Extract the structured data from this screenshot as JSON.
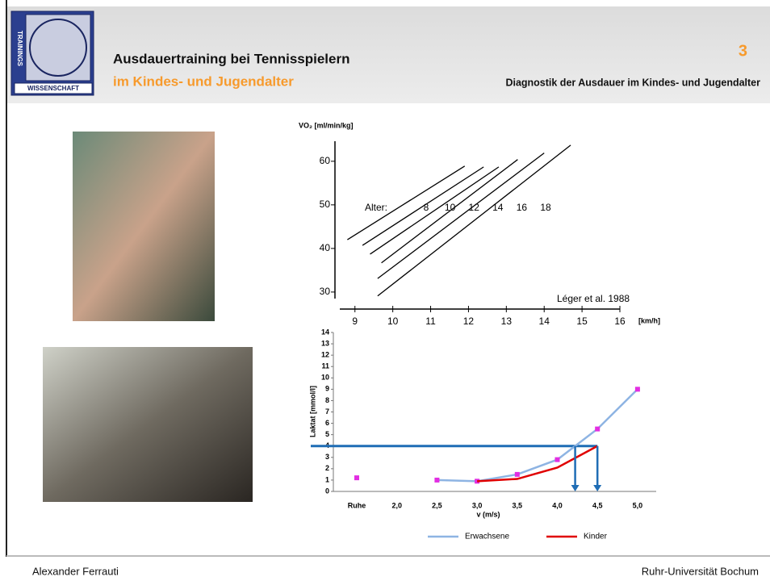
{
  "header": {
    "title": "Ausdauertraining bei Tennisspielern",
    "subtitle": "im Kindes- und Jugendalter",
    "slide_number": "3",
    "section": "Diagnostik der Ausdauer im Kindes- und Jugendalter",
    "logo_side": "TRAININGS",
    "logo_bottom": "WISSENSCHAFT"
  },
  "footer": {
    "author": "Alexander Ferrauti",
    "institution": "Ruhr-Universität Bochum"
  },
  "chart_data": [
    {
      "type": "line",
      "y_label": "VO₂ [ml/min/kg]",
      "x_unit": "[km/h]",
      "legend_title": "Alter:",
      "annotation": "Léger et al. 1988",
      "xlim": [
        8.6,
        16.0
      ],
      "ylim": [
        28.5,
        64.6
      ],
      "xticks": [
        9,
        10,
        11,
        12,
        13,
        14,
        15,
        16
      ],
      "yticks": [
        30,
        40,
        50,
        60
      ],
      "series": [
        {
          "name": "8",
          "color": "#000000",
          "x": [
            8.8,
            11.9
          ],
          "values": [
            42.0,
            58.9
          ]
        },
        {
          "name": "10",
          "color": "#000000",
          "x": [
            9.2,
            12.4
          ],
          "values": [
            40.7,
            58.7
          ]
        },
        {
          "name": "12",
          "color": "#000000",
          "x": [
            9.4,
            12.8
          ],
          "values": [
            38.7,
            58.7
          ]
        },
        {
          "name": "14",
          "color": "#000000",
          "x": [
            9.7,
            13.3
          ],
          "values": [
            36.7,
            60.4
          ]
        },
        {
          "name": "16",
          "color": "#000000",
          "x": [
            9.6,
            14.0
          ],
          "values": [
            33.1,
            61.9
          ]
        },
        {
          "name": "18",
          "color": "#000000",
          "x": [
            9.6,
            14.7
          ],
          "values": [
            29.1,
            63.7
          ]
        }
      ]
    },
    {
      "type": "category-line",
      "x_label": "v  (m/s)",
      "y_label": "Laktat [mmol/l]",
      "categories": [
        "Ruhe",
        "2,0",
        "2,5",
        "3,0",
        "3,5",
        "4,0",
        "4,5",
        "5,0"
      ],
      "ylim": [
        0,
        14
      ],
      "yticks": [
        0,
        1,
        2,
        3,
        4,
        5,
        6,
        7,
        8,
        9,
        10,
        11,
        12,
        13,
        14
      ],
      "reference_line": 4,
      "reference_color": "#1f6db5",
      "series": [
        {
          "name": "Erwachsene",
          "color": "#8eb4e3",
          "marker_color": "#e22ee2",
          "values": [
            1.2,
            null,
            1.0,
            0.9,
            1.5,
            2.8,
            5.5,
            9.0
          ]
        },
        {
          "name": "Kinder",
          "color": "#e00000",
          "values": [
            null,
            null,
            null,
            0.9,
            1.1,
            2.1,
            4.0,
            null
          ]
        }
      ]
    }
  ]
}
